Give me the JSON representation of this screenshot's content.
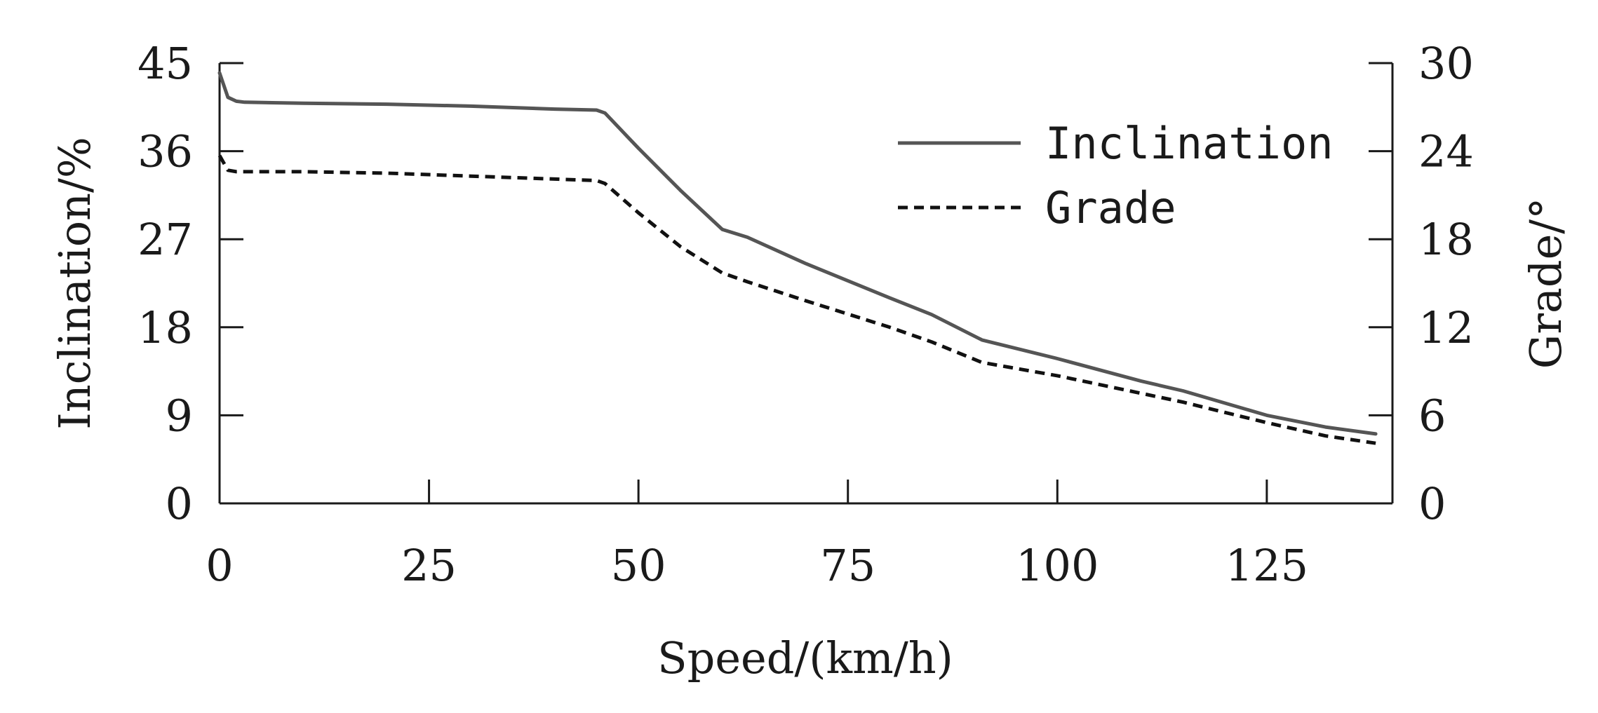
{
  "chart_data": {
    "type": "line",
    "title": "",
    "xlabel": "Speed/(km/h)",
    "ylabel": "Inclination/%",
    "y2label": "Grade/°",
    "xlim": [
      0,
      140
    ],
    "ylim": [
      0,
      45
    ],
    "y2lim": [
      0,
      30
    ],
    "xticks": [
      "0",
      "25",
      "50",
      "75",
      "100",
      "125"
    ],
    "yticks": [
      "0",
      "9",
      "18",
      "27",
      "36",
      "45"
    ],
    "y2ticks": [
      "0",
      "6",
      "12",
      "18",
      "24",
      "30"
    ],
    "grid": false,
    "legend_position": "top-right",
    "series": [
      {
        "name": "Inclination",
        "axis": "left",
        "style": "solid",
        "color": "#555555",
        "x": [
          0,
          1,
          2,
          3,
          10,
          20,
          30,
          40,
          45,
          46,
          50,
          55,
          60,
          63,
          70,
          80,
          85,
          91,
          100,
          110,
          115,
          125,
          132,
          138
        ],
        "y": [
          44,
          41.5,
          41.1,
          41,
          40.9,
          40.8,
          40.6,
          40.3,
          40.2,
          39.9,
          36.3,
          32,
          28,
          27.2,
          24.5,
          21,
          19.3,
          16.7,
          14.8,
          12.5,
          11.5,
          9,
          7.8,
          7.1
        ]
      },
      {
        "name": "Grade",
        "axis": "right",
        "style": "dashed",
        "color": "#111111",
        "x": [
          0,
          1,
          2,
          10,
          20,
          30,
          40,
          45,
          46,
          50,
          55,
          60,
          63,
          70,
          80,
          85,
          91,
          100,
          110,
          115,
          125,
          132,
          138
        ],
        "y": [
          23.7,
          22.7,
          22.6,
          22.6,
          22.5,
          22.3,
          22.1,
          22,
          21.8,
          19.8,
          17.5,
          15.7,
          15.1,
          13.8,
          12,
          11,
          9.6,
          8.7,
          7.5,
          6.9,
          5.5,
          4.6,
          4.1
        ]
      }
    ]
  }
}
